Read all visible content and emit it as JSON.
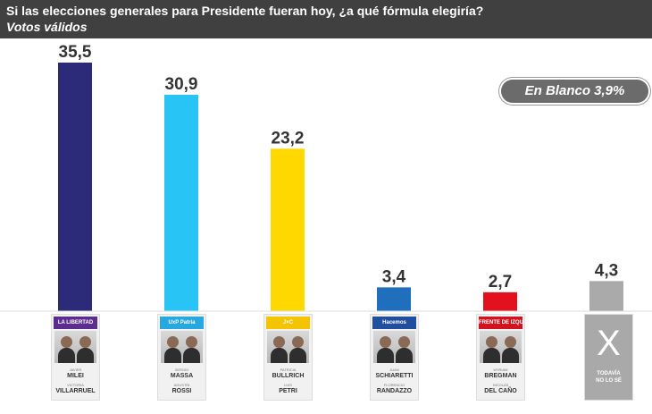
{
  "header": {
    "question": "Si las elecciones generales para Presidente fueran hoy, ¿a qué fórmula elegiría?",
    "subtitle": "Votos válidos"
  },
  "blank_badge": "En Blanco 3,9%",
  "chart_data": {
    "type": "bar",
    "title": "Si las elecciones generales para Presidente fueran hoy, ¿a qué fórmula elegiría?",
    "subtitle": "Votos válidos",
    "categories": [
      "MILEI - VILLARRUEL",
      "MASSA - ROSSI",
      "BULLRICH - PETRI",
      "SCHIARETTI - RANDAZZO",
      "BREGMAN - DEL CAÑO",
      "TODAVÍA NO LO SÉ"
    ],
    "values": [
      35.5,
      30.9,
      23.2,
      3.4,
      2.7,
      4.3
    ],
    "value_labels": [
      "35,5",
      "30,9",
      "23,2",
      "3,4",
      "2,7",
      "4,3"
    ],
    "colors": [
      "#2b2b7a",
      "#27c4f5",
      "#ffd800",
      "#1f6fbd",
      "#e3101e",
      "#aaaaaa"
    ],
    "ylim": [
      0,
      36
    ],
    "grid": false,
    "legend": "none",
    "annotation": "En Blanco 3,9%"
  },
  "candidates": [
    {
      "logo": "LA LIBERTAD",
      "logo_color": "#5b2d8e",
      "pres": "MILEI",
      "vice": "VILLARRUEL",
      "pres_first": "JAVIER",
      "vice_first": "VICTORIA"
    },
    {
      "logo": "UxP Patria",
      "logo_color": "#27a8e0",
      "pres": "MASSA",
      "vice": "ROSSI",
      "pres_first": "SERGIO",
      "vice_first": "AGUSTÍN"
    },
    {
      "logo": "J×C",
      "logo_color": "#f5c400",
      "pres": "BULLRICH",
      "vice": "PETRI",
      "pres_first": "PATRICIA",
      "vice_first": "LUIS"
    },
    {
      "logo": "Hacemos",
      "logo_color": "#1f4f9e",
      "pres": "SCHIARETTI",
      "vice": "RANDAZZO",
      "pres_first": "JUAN",
      "vice_first": "FLORENCIO"
    },
    {
      "logo": "FRENTE DE IZQUIERDA",
      "logo_color": "#d1121f",
      "pres": "BREGMAN",
      "vice": "DEL CAÑO",
      "pres_first": "MYRIAM",
      "vice_first": "NICOLÁS"
    }
  ],
  "undecided": {
    "symbol": "X",
    "label": "TODAVÍA\nNO LO SÉ"
  }
}
